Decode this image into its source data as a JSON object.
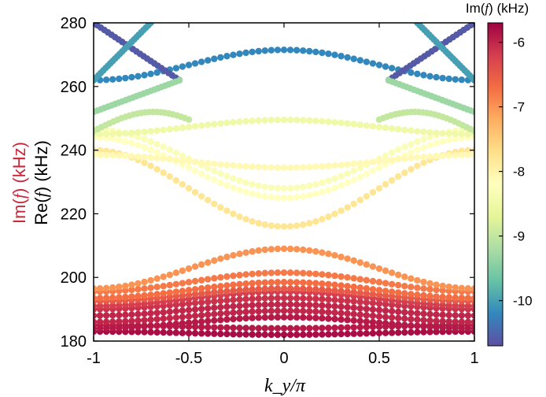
{
  "chart_data": {
    "type": "scatter",
    "title": "",
    "xlabel": "k_y/π",
    "ylabel_prefix_im": "Im(",
    "ylabel_f": "f",
    "ylabel_suffix_im": ") (kHz)",
    "ylabel_prefix_re": "Re(",
    "ylabel_suffix_re": ") (kHz)",
    "xlim": [
      -1,
      1
    ],
    "ylim": [
      180,
      280
    ],
    "xticks": [
      "-1",
      "-0.5",
      "0",
      "0.5",
      "1"
    ],
    "yticks": [
      "180",
      "200",
      "220",
      "240",
      "260",
      "280"
    ],
    "colorbar": {
      "label_prefix": "Im(",
      "label_f": "f",
      "label_suffix": ") (kHz)",
      "range": [
        -10.7,
        -5.7
      ],
      "ticks": [
        "-6",
        "-7",
        "-8",
        "-9",
        "-10"
      ],
      "colormap": "Spectral"
    },
    "ylabel_colors": {
      "im": "#c8283a",
      "re": "#000000"
    },
    "series": [
      {
        "values_f0": 182,
        "edge": 183.0,
        "peak": 182.0,
        "im": -5.8
      },
      {
        "values_f0": 183.5,
        "edge": 185.0,
        "peak": 184.0,
        "im": -5.9
      },
      {
        "values_f0": 186,
        "edge": 184.0,
        "peak": 187.5,
        "im": -5.9
      },
      {
        "values_f0": 188,
        "edge": 186.0,
        "peak": 189.5,
        "im": -6.0
      },
      {
        "values_f0": 190,
        "edge": 188.0,
        "peak": 191.5,
        "im": -6.0
      },
      {
        "values_f0": 192,
        "edge": 190.0,
        "peak": 193.5,
        "im": -6.1
      },
      {
        "values_f0": 194,
        "edge": 191.0,
        "peak": 195.5,
        "im": -6.2
      },
      {
        "values_f0": 196,
        "edge": 192.5,
        "peak": 196.5,
        "im": -6.5
      },
      {
        "values_f0": 197,
        "edge": 193.5,
        "peak": 198.5,
        "im": -6.7
      },
      {
        "values_f0": 198,
        "edge": 195.5,
        "peak": 201.5,
        "im": -6.8
      },
      {
        "values_f0": 200,
        "edge": 196.5,
        "peak": 209.0,
        "im": -7.0
      },
      {
        "values_f0": 216,
        "edge": 240.0,
        "peak": 216.0,
        "im": -7.8
      },
      {
        "values_f0": 225,
        "edge": 244.0,
        "peak": 225.0,
        "im": -8.2
      },
      {
        "values_f0": 228,
        "edge": 246.5,
        "peak": 228.0,
        "im": -8.3
      },
      {
        "values_f0": 234,
        "edge": 238.5,
        "peak": 234.5,
        "im": -8.1
      },
      {
        "values_f0": 249,
        "edge": 245.0,
        "peak": 249.5,
        "im": -8.5
      },
      {
        "values_f0": 265,
        "edge": 262.0,
        "peak": 271.5,
        "im": -10.2
      }
    ],
    "crossing_bands": [
      {
        "im": -10.6
      },
      {
        "im": -10.0
      },
      {
        "im": -9.3
      },
      {
        "im": -9.0
      }
    ]
  }
}
